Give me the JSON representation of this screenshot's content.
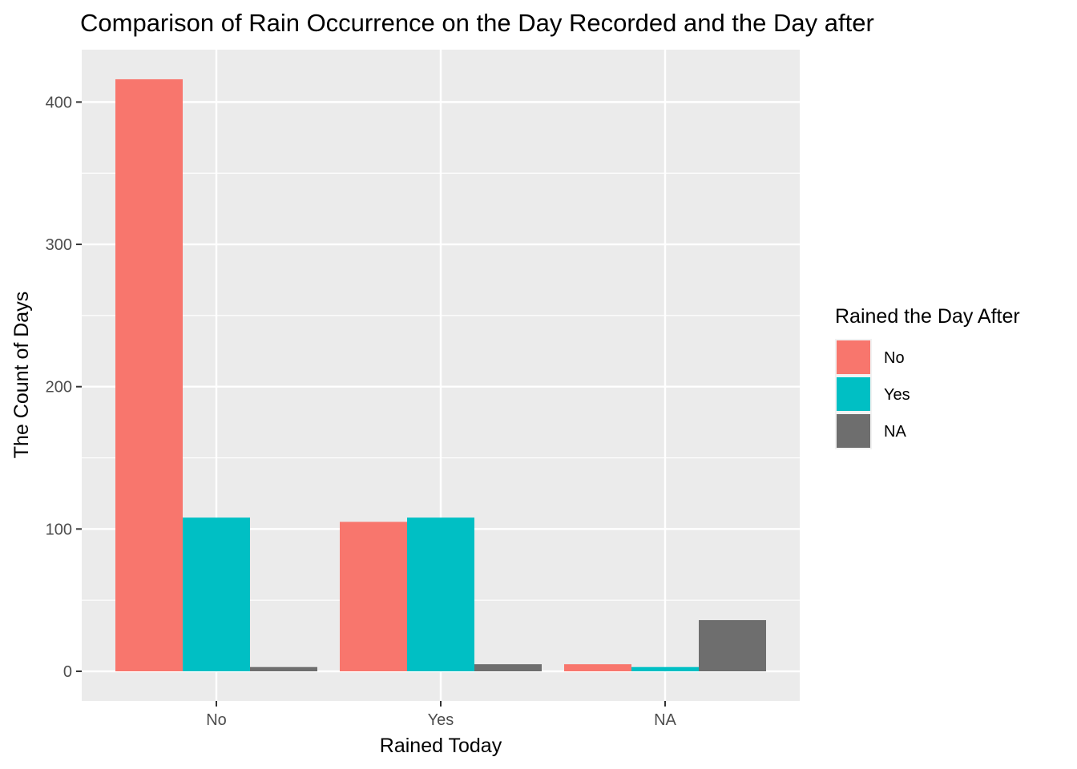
{
  "chart_data": {
    "type": "bar",
    "title": "Comparison of Rain Occurrence on the Day Recorded and the Day after",
    "xlabel": "Rained Today",
    "ylabel": "The Count of Days",
    "categories": [
      "No",
      "Yes",
      "NA"
    ],
    "series": [
      {
        "name": "No",
        "color": "#F8766D",
        "values": [
          416,
          105,
          5
        ]
      },
      {
        "name": "Yes",
        "color": "#00BFC4",
        "values": [
          108,
          108,
          3
        ]
      },
      {
        "name": "NA",
        "color": "#6E6E6E",
        "values": [
          3,
          5,
          36
        ]
      }
    ],
    "ylim": [
      -20.8,
      436.8
    ],
    "yticks": [
      0,
      100,
      200,
      300,
      400
    ],
    "grid": true,
    "legend": {
      "title": "Rained the Day After",
      "position": "right"
    }
  }
}
